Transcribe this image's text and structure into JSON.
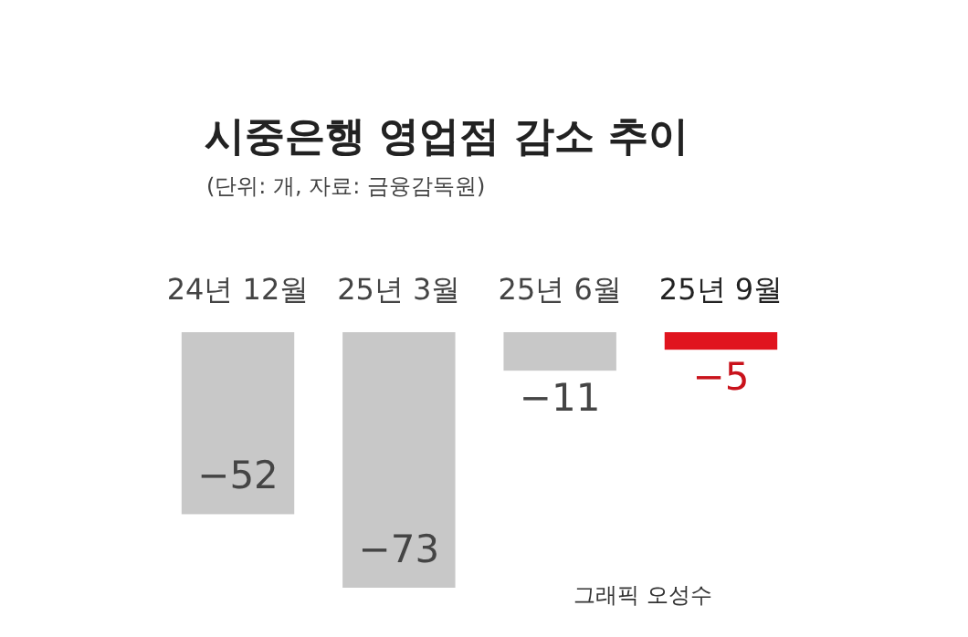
{
  "chart_data": {
    "type": "bar",
    "title": "시중은행 영업점 감소 추이",
    "subtitle": "(단위: 개, 자료: 금융감독원)",
    "categories": [
      "24년 12월",
      "25년 3월",
      "25년 6월",
      "25년 9월"
    ],
    "values": [
      -52,
      -73,
      -11,
      -5
    ],
    "colors": [
      "#c8c8c8",
      "#c8c8c8",
      "#c8c8c8",
      "#e0141e"
    ],
    "data_labels": true,
    "annotations": [
      "그래픽 오성수"
    ]
  }
}
